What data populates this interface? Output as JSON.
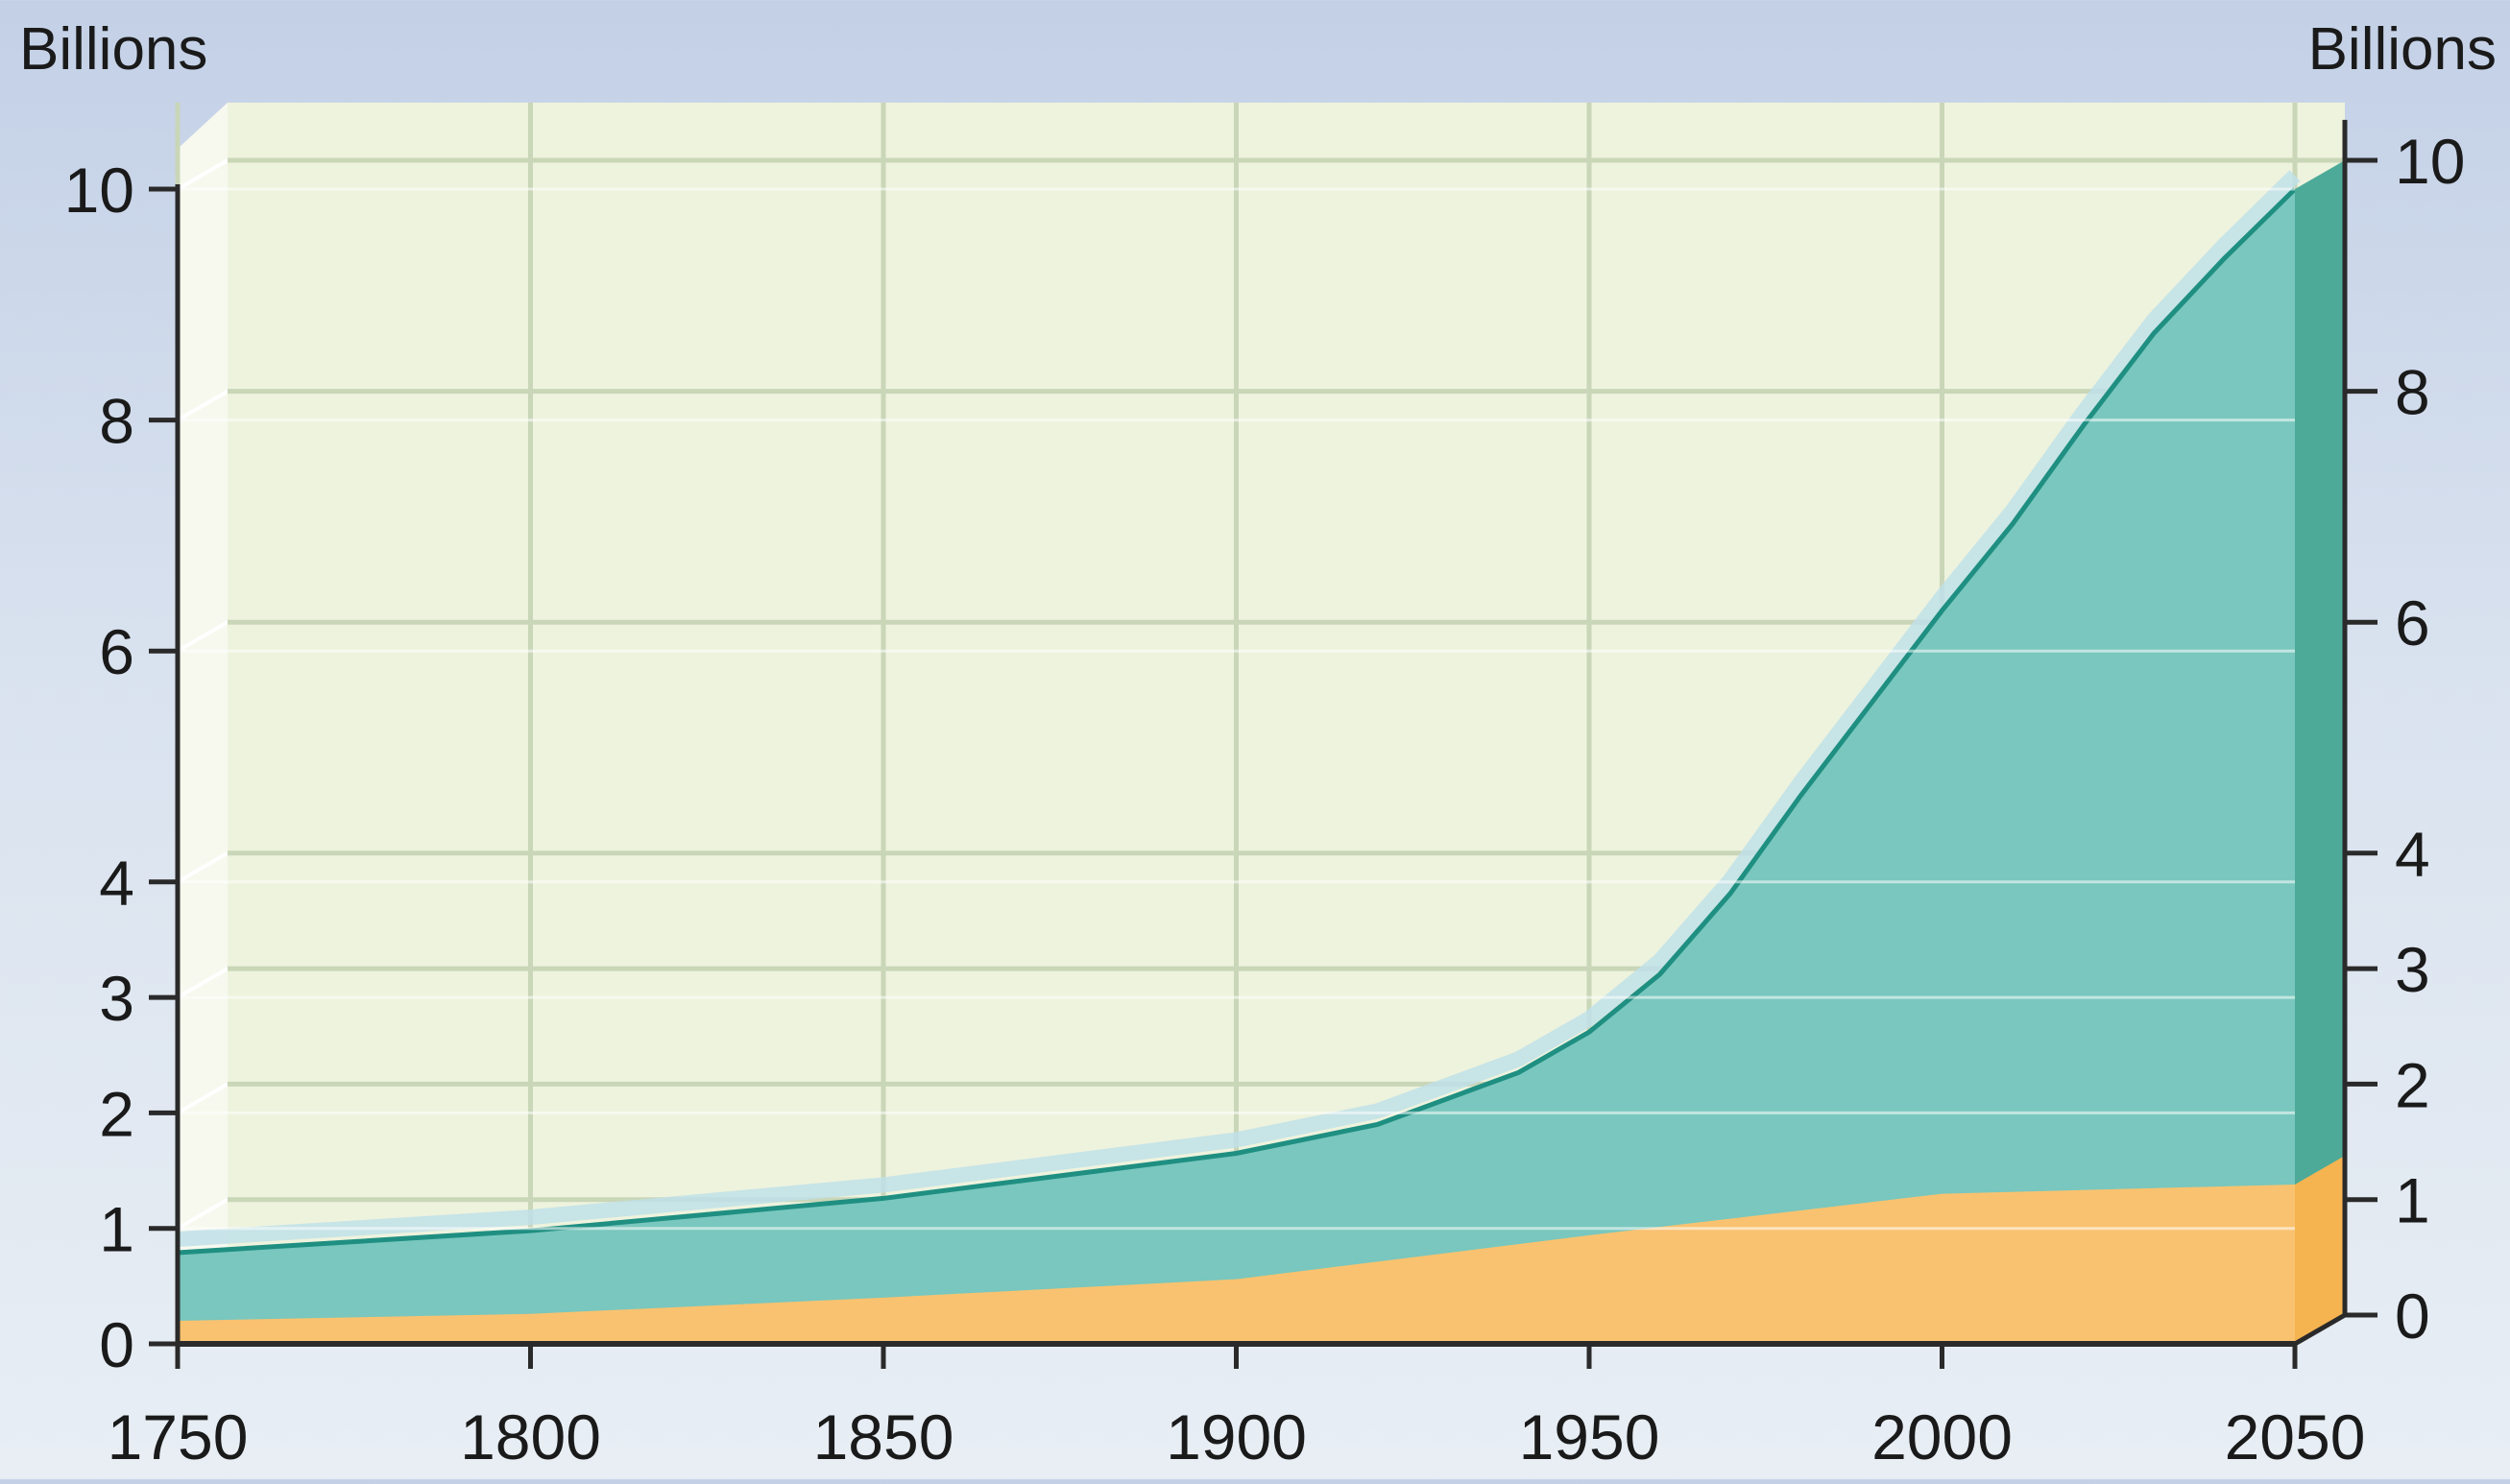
{
  "chart_data": {
    "type": "area",
    "title": "",
    "y_unit_left": "Billions",
    "y_unit_right": "Billions",
    "xlim": [
      1750,
      2050
    ],
    "ylim": [
      0,
      10.5
    ],
    "x_ticks": [
      1750,
      1800,
      1850,
      1900,
      1950,
      2000,
      2050
    ],
    "y_ticks_left": [
      0,
      1,
      2,
      3,
      4,
      6,
      8,
      10
    ],
    "y_ticks_right": [
      0,
      1,
      2,
      3,
      4,
      6,
      8,
      10
    ],
    "grid": true,
    "legend": "none",
    "colors": {
      "upper_series": "#79c7be",
      "upper_series_line": "#1f8f82",
      "lower_series": "#f9c270",
      "plot_background": "#eef3dd",
      "side_panel": "#4eaa98",
      "axis": "#2a2a2a"
    },
    "series": [
      {
        "color": "upper_series",
        "x": [
          1750,
          1800,
          1850,
          1900,
          1920,
          1940,
          1950,
          1960,
          1970,
          1980,
          1990,
          2000,
          2010,
          2020,
          2030,
          2040,
          2050
        ],
        "y": [
          0.79,
          0.98,
          1.26,
          1.65,
          1.9,
          2.35,
          2.7,
          3.2,
          3.9,
          4.75,
          5.55,
          6.35,
          7.1,
          7.95,
          8.75,
          9.4,
          10.0
        ]
      },
      {
        "color": "lower_series",
        "x": [
          1750,
          1800,
          1850,
          1900,
          1950,
          2000,
          2050
        ],
        "y": [
          0.2,
          0.26,
          0.4,
          0.56,
          0.94,
          1.3,
          1.38
        ]
      }
    ]
  }
}
